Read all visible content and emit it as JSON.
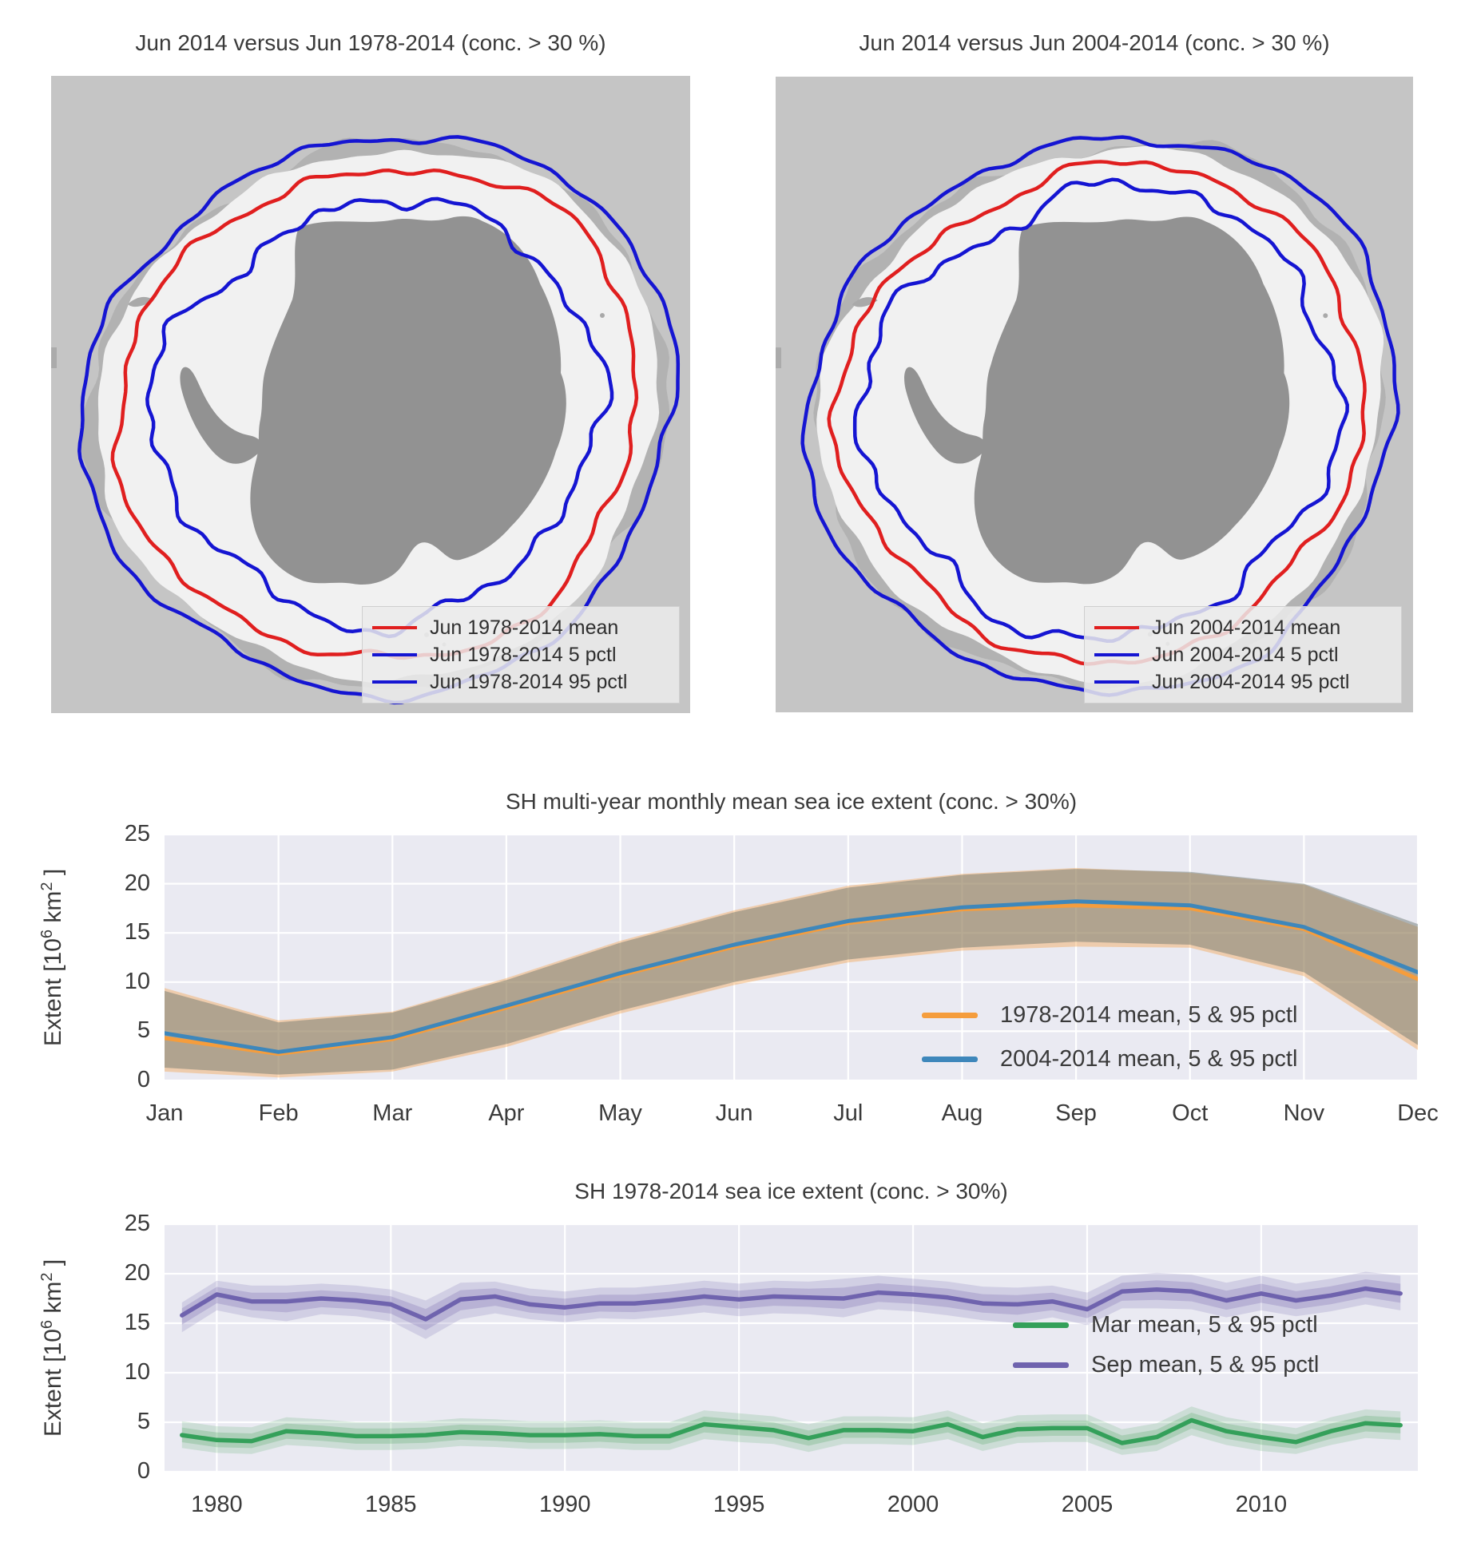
{
  "page": {
    "background": "#ffffff",
    "text_color": "#3a3a3a"
  },
  "map_panels": [
    {
      "title": "Jun 2014 versus Jun 1978-2014 (conc. > 30 %)",
      "legend": [
        {
          "label": "Jun 1978-2014 mean",
          "color": "#e01f1f"
        },
        {
          "label": "Jun 1978-2014 5 pctl",
          "color": "#1515d2"
        },
        {
          "label": "Jun 1978-2014 95 pctl",
          "color": "#1515d2"
        }
      ],
      "colors": {
        "ocean": "#c5c5c5",
        "ice": "#f1f1f1",
        "fringe": "#b2b2b2",
        "land": "#929292",
        "mean": "#e01f1f",
        "pctl": "#1515d2"
      }
    },
    {
      "title": "Jun 2014 versus Jun 2004-2014 (conc. > 30 %)",
      "legend": [
        {
          "label": "Jun 2004-2014 mean",
          "color": "#e01f1f"
        },
        {
          "label": "Jun 2004-2014 5 pctl",
          "color": "#1515d2"
        },
        {
          "label": "Jun 2004-2014 95 pctl",
          "color": "#1515d2"
        }
      ],
      "colors": {
        "ocean": "#c5c5c5",
        "ice": "#f1f1f1",
        "fringe": "#b2b2b2",
        "land": "#929292",
        "mean": "#e01f1f",
        "pctl": "#1515d2"
      }
    }
  ],
  "chart_data": [
    {
      "type": "line",
      "title": "SH multi-year monthly mean sea ice extent (conc. > 30%)",
      "ylabel": "Extent [10^6 km^2]",
      "ylabel_parts": {
        "pre": "Extent [10",
        "sup1": "6",
        "mid": "  km",
        "sup2": "2",
        "post": " ]"
      },
      "categories": [
        "Jan",
        "Feb",
        "Mar",
        "Apr",
        "May",
        "Jun",
        "Jul",
        "Aug",
        "Sep",
        "Oct",
        "Nov",
        "Dec"
      ],
      "y_ticks": [
        0,
        5,
        10,
        15,
        20,
        25
      ],
      "ylim": [
        0,
        25
      ],
      "grid": true,
      "legend_position": "lower right",
      "series": [
        {
          "name": "1978-2014 mean, 5 & 95 pctl",
          "color": "#f59d3d",
          "band_fill": "rgba(246,160,70,0.40)",
          "mean": [
            4.3,
            2.7,
            4.2,
            7.4,
            10.7,
            13.6,
            16.0,
            17.4,
            17.8,
            17.5,
            15.4,
            10.3
          ],
          "pctl5": [
            0.9,
            0.3,
            0.9,
            3.4,
            6.8,
            9.7,
            12.0,
            13.2,
            13.6,
            13.5,
            10.6,
            3.1
          ],
          "pctl95": [
            9.4,
            6.1,
            7.0,
            10.4,
            14.2,
            17.3,
            19.8,
            21.0,
            21.6,
            21.1,
            19.9,
            15.6
          ]
        },
        {
          "name": "2004-2014 mean, 5 & 95 pctl",
          "color": "#3e87bb",
          "band_fill": "rgba(100,112,106,0.45)",
          "mean": [
            4.8,
            2.9,
            4.4,
            7.6,
            10.9,
            13.8,
            16.2,
            17.6,
            18.2,
            17.8,
            15.6,
            11.0
          ],
          "pctl5": [
            1.3,
            0.6,
            1.1,
            3.7,
            7.1,
            10.0,
            12.3,
            13.5,
            14.1,
            13.8,
            11.0,
            3.6
          ],
          "pctl95": [
            9.1,
            5.9,
            6.9,
            10.2,
            14.0,
            17.1,
            19.6,
            20.9,
            21.5,
            21.2,
            20.0,
            15.9
          ]
        }
      ]
    },
    {
      "type": "line",
      "title": "SH 1978-2014 sea ice extent (conc. > 30%)",
      "ylabel": "Extent [10^6 km^2]",
      "ylabel_parts": {
        "pre": "Extent [10",
        "sup1": "6",
        "mid": "  km",
        "sup2": "2",
        "post": " ]"
      },
      "x": [
        1979,
        1980,
        1981,
        1982,
        1983,
        1984,
        1985,
        1986,
        1987,
        1988,
        1989,
        1990,
        1991,
        1992,
        1993,
        1994,
        1995,
        1996,
        1997,
        1998,
        1999,
        2000,
        2001,
        2002,
        2003,
        2004,
        2005,
        2006,
        2007,
        2008,
        2009,
        2010,
        2011,
        2012,
        2013,
        2014
      ],
      "x_ticks": [
        1980,
        1985,
        1990,
        1995,
        2000,
        2005,
        2010
      ],
      "xlim": [
        1978.5,
        2014.5
      ],
      "y_ticks": [
        0,
        5,
        10,
        15,
        20,
        25
      ],
      "ylim": [
        0,
        25
      ],
      "grid": true,
      "legend_position": "right",
      "series": [
        {
          "name": "Mar mean, 5 & 95 pctl",
          "color": "#34a05a",
          "band_fill": "rgba(85,168,104,0.20)",
          "band_fill_inner": "rgba(85,168,104,0.28)",
          "mean": [
            3.7,
            3.2,
            3.1,
            4.1,
            3.9,
            3.6,
            3.6,
            3.7,
            4.0,
            3.9,
            3.7,
            3.7,
            3.8,
            3.6,
            3.6,
            4.8,
            4.5,
            4.2,
            3.4,
            4.2,
            4.2,
            4.1,
            4.8,
            3.5,
            4.3,
            4.4,
            4.4,
            2.9,
            3.5,
            5.2,
            4.1,
            3.5,
            3.0,
            4.1,
            4.9,
            4.7
          ],
          "pctl5": [
            2.4,
            1.9,
            1.8,
            2.7,
            2.5,
            2.2,
            2.2,
            2.3,
            2.6,
            2.5,
            2.3,
            2.3,
            2.4,
            2.2,
            2.2,
            3.3,
            3.0,
            2.8,
            2.0,
            2.8,
            2.8,
            2.7,
            3.3,
            2.1,
            2.9,
            3.0,
            3.0,
            1.7,
            2.1,
            3.7,
            2.7,
            2.1,
            1.8,
            2.7,
            3.4,
            3.2
          ],
          "pctl95": [
            5.1,
            4.6,
            4.5,
            5.5,
            5.3,
            5.0,
            5.0,
            5.1,
            5.4,
            5.3,
            5.1,
            5.1,
            5.2,
            5.0,
            5.0,
            6.2,
            5.9,
            5.6,
            4.8,
            5.6,
            5.6,
            5.5,
            6.2,
            4.9,
            5.7,
            5.8,
            5.8,
            4.3,
            4.9,
            6.6,
            5.5,
            4.9,
            4.4,
            5.5,
            6.3,
            6.1
          ]
        },
        {
          "name": "Sep mean, 5 & 95 pctl",
          "color": "#6f63ae",
          "band_fill": "rgba(125,112,179,0.22)",
          "band_fill_inner": "rgba(125,112,179,0.30)",
          "mean": [
            15.8,
            17.9,
            17.2,
            17.2,
            17.5,
            17.3,
            16.9,
            15.4,
            17.4,
            17.7,
            16.9,
            16.6,
            17.0,
            17.0,
            17.3,
            17.7,
            17.4,
            17.7,
            17.6,
            17.5,
            18.1,
            17.9,
            17.6,
            17.0,
            16.9,
            17.2,
            16.4,
            18.2,
            18.4,
            18.2,
            17.3,
            18.0,
            17.3,
            17.8,
            18.5,
            18.0
          ],
          "pctl5": [
            14.1,
            16.3,
            15.6,
            15.2,
            15.9,
            15.7,
            15.2,
            13.4,
            15.4,
            16.0,
            15.4,
            15.1,
            15.5,
            15.4,
            15.7,
            16.1,
            15.7,
            16.0,
            15.9,
            15.6,
            16.4,
            16.2,
            15.8,
            15.3,
            15.0,
            15.6,
            14.8,
            16.5,
            16.5,
            16.4,
            15.6,
            16.3,
            15.7,
            16.2,
            16.9,
            16.3
          ],
          "pctl95": [
            17.1,
            19.3,
            18.8,
            18.8,
            19.0,
            18.8,
            18.4,
            17.3,
            19.1,
            19.2,
            18.5,
            18.2,
            18.6,
            18.6,
            18.9,
            19.3,
            19.0,
            19.3,
            19.2,
            19.5,
            19.8,
            19.5,
            19.2,
            18.7,
            18.6,
            18.8,
            18.1,
            19.8,
            20.1,
            19.9,
            19.1,
            19.8,
            19.0,
            19.5,
            20.2,
            19.8
          ]
        }
      ]
    }
  ]
}
